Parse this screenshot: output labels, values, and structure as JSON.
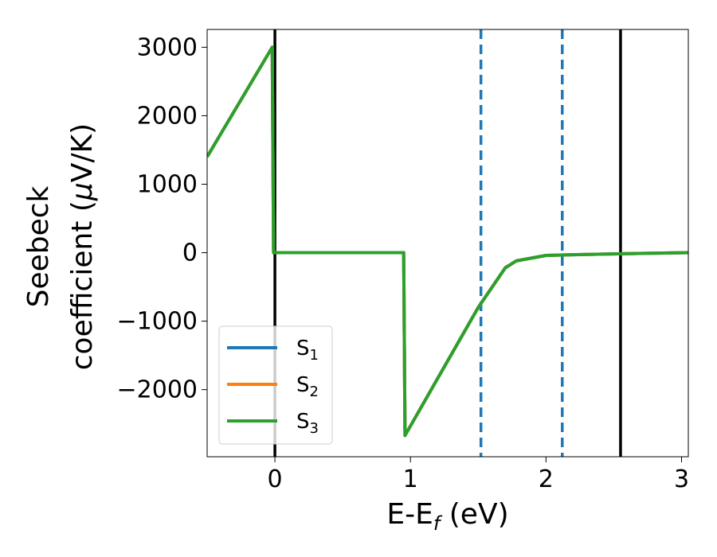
{
  "chart_data": {
    "type": "line",
    "xlabel": {
      "main": "E-E",
      "sub": "f",
      "tail": " (eV)"
    },
    "ylabel": {
      "line1": "Seebeck",
      "line2_pre": "coefficient  (",
      "line2_mu": "μ",
      "line2_post": "V/K)"
    },
    "xlim": [
      -0.5,
      3.05
    ],
    "ylim": [
      -2980,
      3260
    ],
    "xticks": [
      0,
      1,
      2,
      3
    ],
    "xtick_labels": [
      "0",
      "1",
      "2",
      "3"
    ],
    "yticks": [
      3000,
      2000,
      1000,
      0,
      -1000,
      -2000
    ],
    "ytick_labels": [
      "3000",
      "2000",
      "1000",
      "0",
      "−1000",
      "−2000"
    ],
    "series": [
      {
        "name": "S",
        "sub": "1",
        "color": "#1f77b4",
        "x": [
          -0.5,
          -0.02,
          -0.01,
          0.95,
          0.96,
          1.5,
          1.7,
          1.78,
          2.0,
          2.2,
          2.6,
          3.05
        ],
        "y": [
          1400,
          3000,
          0,
          0,
          -2670,
          -800,
          -220,
          -120,
          -40,
          -30,
          -15,
          0
        ]
      },
      {
        "name": "S",
        "sub": "2",
        "color": "#ff7f0e",
        "x": [
          -0.5,
          -0.02,
          -0.01,
          0.95,
          0.96,
          1.5,
          1.7,
          1.78,
          2.0,
          2.2,
          2.6,
          3.05
        ],
        "y": [
          1400,
          3000,
          0,
          0,
          -2670,
          -800,
          -220,
          -120,
          -40,
          -30,
          -15,
          0
        ]
      },
      {
        "name": "S",
        "sub": "3",
        "color": "#2ca02c",
        "x": [
          -0.5,
          -0.02,
          -0.01,
          0.95,
          0.96,
          1.5,
          1.7,
          1.78,
          2.0,
          2.2,
          2.6,
          3.05
        ],
        "y": [
          1400,
          3000,
          0,
          0,
          -2670,
          -800,
          -220,
          -120,
          -40,
          -30,
          -15,
          0
        ]
      }
    ],
    "vlines": [
      {
        "x": 0.0,
        "color": "#000000",
        "style": "solid"
      },
      {
        "x": 1.52,
        "color": "#1f77b4",
        "style": "dashed"
      },
      {
        "x": 2.12,
        "color": "#1f77b4",
        "style": "dashed"
      },
      {
        "x": 2.55,
        "color": "#000000",
        "style": "solid"
      }
    ],
    "legend_position": "lower-left",
    "grid": false
  }
}
